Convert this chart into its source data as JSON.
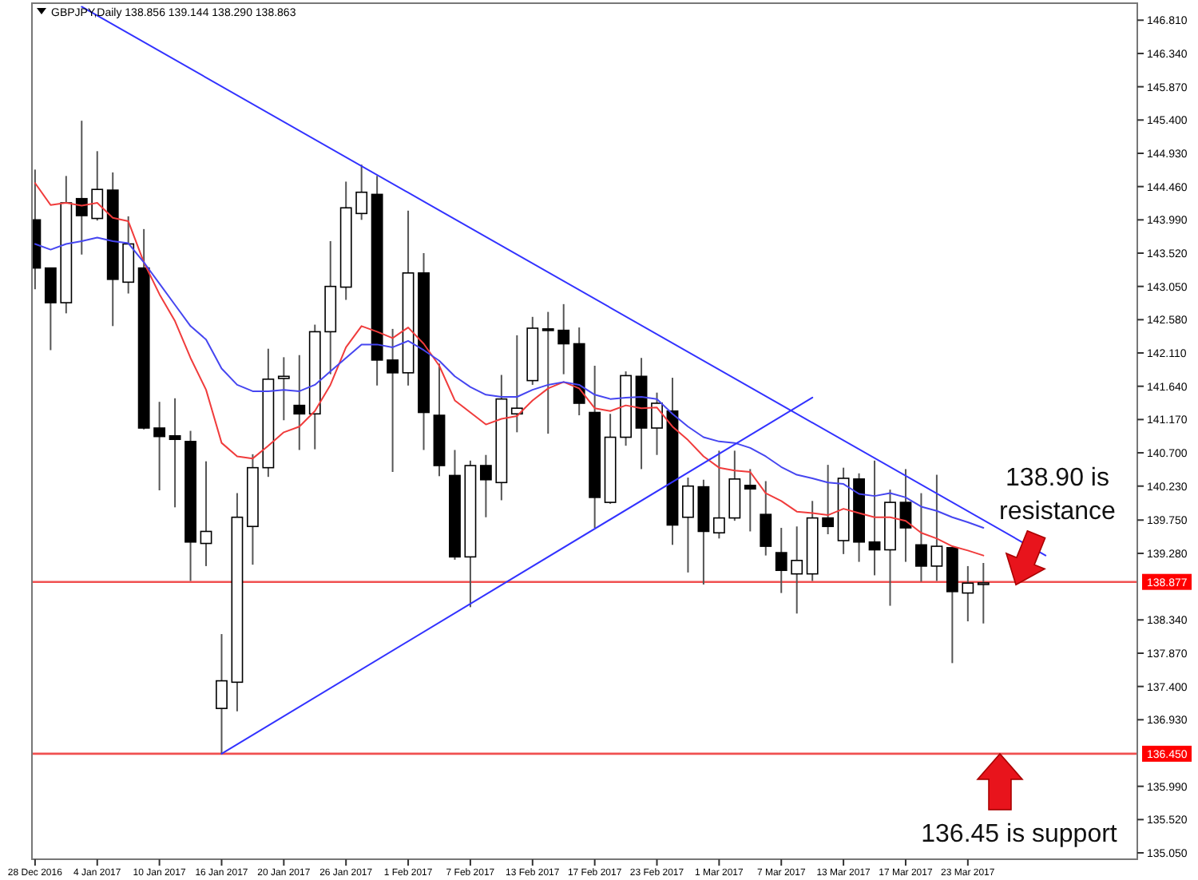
{
  "chart_data": {
    "type": "candlestick",
    "title": "GBPJPY,Daily  138.856 139.144 138.290 138.863",
    "categories": [
      "28 Dec 2016",
      null,
      null,
      null,
      "4 Jan 2017",
      null,
      null,
      null,
      "10 Jan 2017",
      null,
      null,
      null,
      "16 Jan 2017",
      null,
      null,
      null,
      "20 Jan 2017",
      null,
      null,
      null,
      "26 Jan 2017",
      null,
      null,
      null,
      "1 Feb 2017",
      null,
      null,
      null,
      "7 Feb 2017",
      null,
      null,
      null,
      "13 Feb 2017",
      null,
      null,
      null,
      "17 Feb 2017",
      null,
      null,
      null,
      "23 Feb 2017",
      null,
      null,
      null,
      "1 Mar 2017",
      null,
      null,
      null,
      "7 Mar 2017",
      null,
      null,
      null,
      "13 Mar 2017",
      null,
      null,
      null,
      "17 Mar 2017",
      null,
      null,
      null,
      "23 Mar 2017",
      null,
      null,
      null,
      null,
      null,
      null,
      null,
      null,
      null,
      null
    ],
    "ohlc": [
      [
        143.99,
        144.7,
        143.01,
        143.31
      ],
      [
        143.31,
        143.31,
        142.15,
        142.82
      ],
      [
        142.82,
        144.61,
        142.67,
        144.23
      ],
      [
        144.29,
        145.39,
        143.5,
        144.05
      ],
      [
        144.01,
        144.96,
        143.98,
        144.42
      ],
      [
        144.41,
        144.66,
        142.49,
        143.15
      ],
      [
        143.11,
        144.04,
        142.95,
        143.65
      ],
      [
        143.31,
        143.86,
        141.03,
        141.05
      ],
      [
        141.05,
        141.42,
        140.17,
        140.93
      ],
      [
        140.94,
        141.47,
        139.93,
        140.89
      ],
      [
        140.86,
        141.01,
        138.89,
        139.44
      ],
      [
        139.42,
        140.58,
        139.1,
        139.59
      ],
      [
        137.09,
        138.14,
        136.45,
        137.48
      ],
      [
        137.46,
        140.13,
        137.05,
        139.79
      ],
      [
        139.66,
        140.68,
        139.12,
        140.49
      ],
      [
        140.49,
        142.17,
        140.36,
        141.74
      ],
      [
        141.75,
        142.05,
        141.16,
        141.78
      ],
      [
        141.37,
        142.08,
        140.74,
        141.25
      ],
      [
        141.25,
        142.51,
        140.75,
        142.41
      ],
      [
        142.41,
        143.69,
        141.81,
        143.05
      ],
      [
        143.04,
        144.53,
        142.86,
        144.16
      ],
      [
        144.08,
        144.77,
        143.99,
        144.38
      ],
      [
        144.35,
        144.61,
        141.65,
        142.01
      ],
      [
        142.01,
        142.45,
        140.43,
        141.83
      ],
      [
        141.83,
        144.12,
        141.65,
        143.24
      ],
      [
        143.24,
        143.52,
        140.74,
        141.27
      ],
      [
        141.23,
        141.96,
        140.37,
        140.52
      ],
      [
        140.38,
        140.74,
        139.19,
        139.23
      ],
      [
        139.23,
        140.59,
        138.52,
        140.52
      ],
      [
        140.52,
        140.67,
        139.79,
        140.32
      ],
      [
        140.28,
        141.8,
        140.03,
        141.46
      ],
      [
        141.25,
        142.36,
        140.99,
        141.33
      ],
      [
        141.72,
        142.62,
        141.66,
        142.46
      ],
      [
        142.45,
        142.69,
        140.97,
        142.43
      ],
      [
        142.43,
        142.8,
        141.81,
        142.24
      ],
      [
        142.24,
        142.47,
        141.23,
        141.4
      ],
      [
        141.27,
        141.93,
        139.64,
        140.07
      ],
      [
        140.0,
        141.25,
        139.98,
        140.92
      ],
      [
        140.92,
        141.85,
        140.8,
        141.79
      ],
      [
        141.78,
        142.04,
        140.47,
        141.05
      ],
      [
        141.05,
        141.55,
        140.67,
        141.4
      ],
      [
        141.29,
        141.76,
        139.4,
        139.68
      ],
      [
        139.79,
        140.35,
        139.01,
        140.23
      ],
      [
        140.22,
        140.32,
        138.84,
        139.59
      ],
      [
        139.57,
        140.73,
        139.49,
        139.78
      ],
      [
        139.78,
        140.73,
        139.74,
        140.33
      ],
      [
        140.24,
        140.47,
        139.59,
        140.19
      ],
      [
        139.83,
        140.3,
        139.25,
        139.38
      ],
      [
        139.29,
        139.64,
        138.72,
        139.04
      ],
      [
        138.99,
        139.66,
        138.43,
        139.18
      ],
      [
        138.99,
        140.02,
        138.89,
        139.78
      ],
      [
        139.78,
        140.53,
        139.55,
        139.66
      ],
      [
        139.46,
        140.49,
        139.27,
        140.34
      ],
      [
        140.33,
        140.41,
        139.16,
        139.44
      ],
      [
        139.44,
        140.59,
        138.97,
        139.33
      ],
      [
        139.33,
        140.18,
        138.54,
        140.0
      ],
      [
        140.0,
        140.47,
        139.16,
        139.64
      ],
      [
        139.4,
        140.13,
        138.88,
        139.1
      ],
      [
        139.1,
        140.39,
        138.89,
        139.38
      ],
      [
        139.36,
        139.36,
        137.73,
        138.74
      ],
      [
        138.72,
        139.1,
        138.32,
        138.86
      ],
      [
        138.856,
        139.144,
        138.29,
        138.863
      ],
      null,
      null,
      null,
      null,
      null,
      null,
      null,
      null,
      null
    ],
    "series": [
      {
        "type": "line",
        "color": "#f03c3c",
        "values": [
          144.51,
          144.2,
          144.23,
          144.19,
          144.23,
          144.02,
          143.97,
          143.39,
          142.94,
          142.56,
          142.04,
          141.59,
          140.84,
          140.65,
          140.62,
          140.8,
          140.99,
          141.07,
          141.29,
          141.66,
          142.19,
          142.49,
          142.41,
          142.32,
          142.47,
          142.24,
          141.93,
          141.44,
          141.27,
          141.1,
          141.18,
          141.22,
          141.44,
          141.61,
          141.7,
          141.61,
          141.33,
          141.29,
          141.37,
          141.33,
          141.34,
          141.07,
          140.88,
          140.65,
          140.49,
          140.45,
          140.43,
          140.13,
          140.02,
          139.87,
          139.85,
          139.82,
          139.91,
          139.85,
          139.79,
          139.79,
          139.74,
          139.57,
          139.49,
          139.38,
          139.32,
          139.25,
          null,
          null,
          null,
          null,
          null,
          null,
          null,
          null,
          null
        ]
      },
      {
        "type": "line",
        "color": "#4646f0",
        "values": [
          143.65,
          143.57,
          143.65,
          143.69,
          143.74,
          143.69,
          143.66,
          143.39,
          143.09,
          142.79,
          142.49,
          142.3,
          141.89,
          141.66,
          141.57,
          141.57,
          141.59,
          141.57,
          141.66,
          141.85,
          142.04,
          142.23,
          142.23,
          142.19,
          142.28,
          142.15,
          142.0,
          141.78,
          141.63,
          141.52,
          141.49,
          141.49,
          141.59,
          141.66,
          141.7,
          141.66,
          141.52,
          141.46,
          141.48,
          141.49,
          141.46,
          141.25,
          141.07,
          140.92,
          140.86,
          140.84,
          140.77,
          140.65,
          140.5,
          140.39,
          140.34,
          140.28,
          140.26,
          140.12,
          140.09,
          140.13,
          140.07,
          139.94,
          139.88,
          139.79,
          139.72,
          139.64,
          null,
          null,
          null,
          null,
          null,
          null,
          null,
          null,
          null
        ]
      },
      {
        "type": "line",
        "color": "#3232ff",
        "values": [
          null,
          null,
          null,
          147.0,
          null,
          null,
          null,
          null,
          null,
          null,
          null,
          null,
          null,
          null,
          null,
          null,
          null,
          null,
          null,
          null,
          null,
          null,
          null,
          null,
          null,
          null,
          null,
          null,
          null,
          null,
          null,
          null,
          null,
          null,
          null,
          null,
          null,
          null,
          null,
          null,
          null,
          null,
          null,
          null,
          null,
          null,
          null,
          null,
          null,
          null,
          null,
          null,
          null,
          null,
          null,
          null,
          null,
          null,
          null,
          null,
          null,
          null,
          null,
          null,
          null,
          139.25,
          null,
          null,
          null,
          null,
          null
        ]
      },
      {
        "type": "line",
        "color": "#3232ff",
        "values": [
          null,
          null,
          null,
          null,
          null,
          null,
          null,
          null,
          null,
          null,
          null,
          null,
          136.45,
          null,
          null,
          null,
          null,
          null,
          null,
          null,
          null,
          null,
          null,
          null,
          null,
          null,
          null,
          null,
          null,
          null,
          null,
          null,
          null,
          null,
          null,
          null,
          null,
          null,
          null,
          null,
          null,
          null,
          null,
          null,
          null,
          null,
          null,
          null,
          null,
          null,
          141.48,
          null,
          null,
          null,
          null,
          null,
          null,
          null,
          null,
          null,
          null,
          null,
          null,
          null,
          null,
          null,
          null,
          null,
          null,
          null,
          null
        ]
      }
    ],
    "ylim": [
      134.96,
      147.05
    ],
    "yticks": [
      {
        "value": 146.81,
        "label": "146.810"
      },
      {
        "value": 146.34,
        "label": "146.340"
      },
      {
        "value": 145.87,
        "label": "145.870"
      },
      {
        "value": 145.4,
        "label": "145.400"
      },
      {
        "value": 144.93,
        "label": "144.930"
      },
      {
        "value": 144.46,
        "label": "144.460"
      },
      {
        "value": 143.99,
        "label": "143.990"
      },
      {
        "value": 143.52,
        "label": "143.520"
      },
      {
        "value": 143.05,
        "label": "143.050"
      },
      {
        "value": 142.58,
        "label": "142.580"
      },
      {
        "value": 142.11,
        "label": "142.110"
      },
      {
        "value": 141.64,
        "label": "141.640"
      },
      {
        "value": 141.17,
        "label": "141.170"
      },
      {
        "value": 140.7,
        "label": "140.700"
      },
      {
        "value": 140.23,
        "label": "140.230"
      },
      {
        "value": 139.75,
        "label": "139.750"
      },
      {
        "value": 139.28,
        "label": "139.280"
      },
      {
        "value": 138.34,
        "label": "138.340"
      },
      {
        "value": 137.87,
        "label": "137.870"
      },
      {
        "value": 137.4,
        "label": "137.400"
      },
      {
        "value": 136.93,
        "label": "136.930"
      },
      {
        "value": 135.99,
        "label": "135.990"
      },
      {
        "value": 135.52,
        "label": "135.520"
      },
      {
        "value": 135.05,
        "label": "135.050"
      }
    ],
    "ref_lines": [
      {
        "axis": "y",
        "value": 138.877,
        "label": "138.877",
        "color": "#f05050"
      },
      {
        "axis": "y",
        "value": 136.45,
        "label": "136.450",
        "color": "#f05050"
      }
    ],
    "annotations": [
      {
        "text": "138.90 is resistance",
        "y": 138.9
      },
      {
        "text": "136.45 is support",
        "y": 136.45
      }
    ],
    "grid": false
  }
}
